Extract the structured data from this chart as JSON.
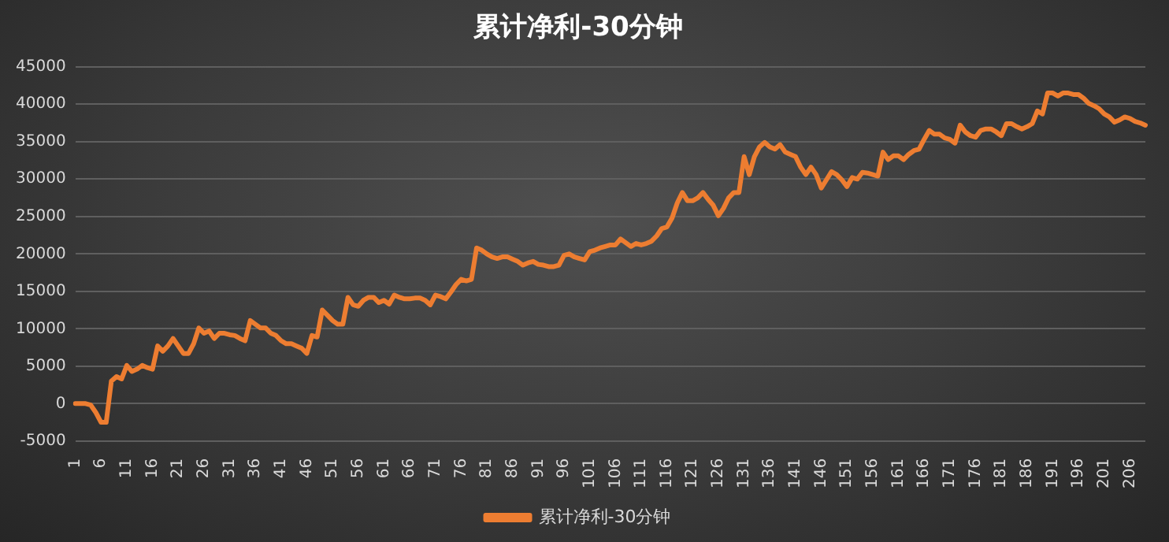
{
  "chart_data": {
    "type": "line",
    "title": "累计净利-30分钟",
    "categories": [
      "1",
      null,
      null,
      null,
      null,
      "6",
      null,
      null,
      null,
      null,
      "11",
      null,
      null,
      null,
      null,
      "16",
      null,
      null,
      null,
      null,
      "21",
      null,
      null,
      null,
      null,
      "26",
      null,
      null,
      null,
      null,
      "31",
      null,
      null,
      null,
      null,
      "36",
      null,
      null,
      null,
      null,
      "41",
      null,
      null,
      null,
      null,
      "46",
      null,
      null,
      null,
      null,
      "51",
      null,
      null,
      null,
      null,
      "56",
      null,
      null,
      null,
      null,
      "61",
      null,
      null,
      null,
      null,
      "66",
      null,
      null,
      null,
      null,
      "71",
      null,
      null,
      null,
      null,
      "76",
      null,
      null,
      null,
      null,
      "81",
      null,
      null,
      null,
      null,
      "86",
      null,
      null,
      null,
      null,
      "91",
      null,
      null,
      null,
      null,
      "96",
      null,
      null,
      null,
      null,
      "101",
      null,
      null,
      null,
      null,
      "106",
      null,
      null,
      null,
      null,
      "111",
      null,
      null,
      null,
      null,
      "116",
      null,
      null,
      null,
      null,
      "121",
      null,
      null,
      null,
      null,
      "126",
      null,
      null,
      null,
      null,
      "131",
      null,
      null,
      null,
      null,
      "136",
      null,
      null,
      null,
      null,
      "141",
      null,
      null,
      null,
      null,
      "146",
      null,
      null,
      null,
      null,
      "151",
      null,
      null,
      null,
      null,
      "156",
      null,
      null,
      null,
      null,
      "161",
      null,
      null,
      null,
      null,
      "166",
      null,
      null,
      null,
      null,
      "171",
      null,
      null,
      null,
      null,
      "176",
      null,
      null,
      null,
      null,
      "181",
      null,
      null,
      null,
      null,
      "186",
      null,
      null,
      null,
      null,
      "191",
      null,
      null,
      null,
      null,
      "196",
      null,
      null,
      null,
      null,
      "201",
      null,
      null,
      null,
      null,
      "206",
      null,
      null,
      null
    ],
    "series": [
      {
        "name": "累计净利-30分钟",
        "color": "#ed7d31",
        "values": [
          0,
          0,
          0,
          -200,
          -1200,
          -2500,
          -2500,
          3000,
          3600,
          3300,
          5100,
          4300,
          4600,
          5100,
          4800,
          4600,
          7700,
          7000,
          7700,
          8700,
          7700,
          6700,
          6700,
          8000,
          10100,
          9400,
          9700,
          8700,
          9400,
          9400,
          9200,
          9100,
          8700,
          8400,
          11100,
          10600,
          10100,
          10100,
          9400,
          9100,
          8400,
          8000,
          8000,
          7700,
          7400,
          6700,
          9100,
          8900,
          12500,
          11800,
          11100,
          10600,
          10600,
          14200,
          13200,
          13000,
          13800,
          14200,
          14200,
          13500,
          13800,
          13300,
          14500,
          14200,
          14000,
          14000,
          14100,
          14100,
          13800,
          13200,
          14500,
          14300,
          14000,
          14900,
          15900,
          16600,
          16400,
          16600,
          20800,
          20500,
          20000,
          19600,
          19400,
          19600,
          19600,
          19300,
          19000,
          18500,
          18800,
          19000,
          18600,
          18500,
          18300,
          18300,
          18500,
          19800,
          20000,
          19600,
          19400,
          19200,
          20300,
          20500,
          20800,
          21000,
          21200,
          21200,
          22000,
          21500,
          21000,
          21400,
          21200,
          21400,
          21700,
          22400,
          23400,
          23600,
          24800,
          26800,
          28200,
          27100,
          27100,
          27500,
          28200,
          27300,
          26500,
          25100,
          26100,
          27500,
          28200,
          28200,
          33000,
          30600,
          33000,
          34300,
          34900,
          34300,
          34000,
          34600,
          33600,
          33300,
          33000,
          31600,
          30600,
          31600,
          30600,
          28800,
          29900,
          31000,
          30600,
          29900,
          29000,
          30200,
          30000,
          30900,
          30800,
          30600,
          30400,
          33600,
          32600,
          33100,
          33100,
          32600,
          33300,
          33800,
          34000,
          35300,
          36500,
          36000,
          36000,
          35500,
          35300,
          34800,
          37200,
          36300,
          35800,
          35600,
          36500,
          36700,
          36700,
          36300,
          35800,
          37400,
          37400,
          37000,
          36700,
          37000,
          37400,
          39100,
          38700,
          41500,
          41500,
          41100,
          41500,
          41500,
          41300,
          41300,
          40800,
          40100,
          39800,
          39400,
          38700,
          38300,
          37600,
          37900,
          38300,
          38100,
          37700,
          37500,
          37200
        ]
      }
    ],
    "ylim": [
      -5000,
      45000
    ],
    "yticks": [
      -5000,
      0,
      5000,
      10000,
      15000,
      20000,
      25000,
      30000,
      35000,
      40000,
      45000
    ],
    "grid": "y",
    "legend": "bottom",
    "marker": "none",
    "line_style": "solid"
  }
}
